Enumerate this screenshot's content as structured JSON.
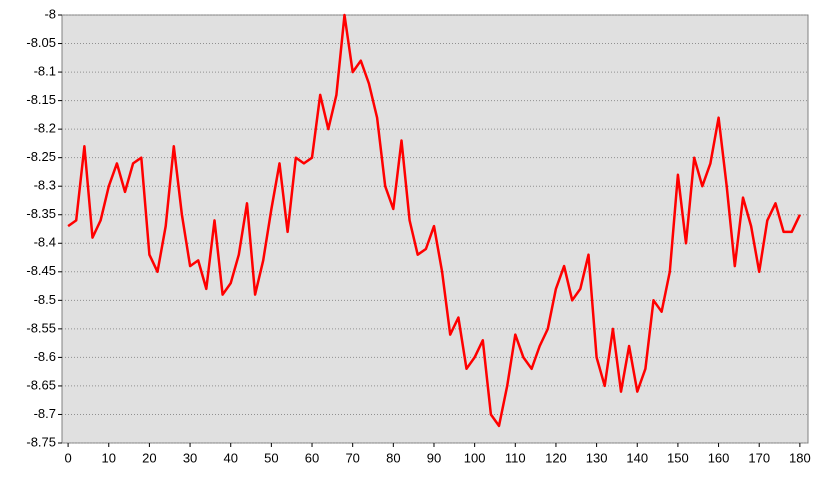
{
  "chart_data": {
    "type": "line",
    "x": [
      0,
      2,
      4,
      6,
      8,
      10,
      12,
      14,
      16,
      18,
      20,
      22,
      24,
      26,
      28,
      30,
      32,
      34,
      36,
      38,
      40,
      42,
      44,
      46,
      48,
      50,
      52,
      54,
      56,
      58,
      60,
      62,
      64,
      66,
      68,
      70,
      72,
      74,
      76,
      78,
      80,
      82,
      84,
      86,
      88,
      90,
      92,
      94,
      96,
      98,
      100,
      102,
      104,
      106,
      108,
      110,
      112,
      114,
      116,
      118,
      120,
      122,
      124,
      126,
      128,
      130,
      132,
      134,
      136,
      138,
      140,
      142,
      144,
      146,
      148,
      150,
      152,
      154,
      156,
      158,
      160,
      162,
      164,
      166,
      168,
      170,
      172,
      174,
      176,
      178,
      180
    ],
    "series": [
      {
        "color": "#ff0000",
        "values": [
          -8.37,
          -8.36,
          -8.23,
          -8.39,
          -8.36,
          -8.3,
          -8.26,
          -8.31,
          -8.26,
          -8.25,
          -8.42,
          -8.45,
          -8.37,
          -8.23,
          -8.35,
          -8.44,
          -8.43,
          -8.48,
          -8.36,
          -8.49,
          -8.47,
          -8.42,
          -8.33,
          -8.49,
          -8.43,
          -8.34,
          -8.26,
          -8.38,
          -8.25,
          -8.26,
          -8.25,
          -8.14,
          -8.2,
          -8.14,
          -8.0,
          -8.1,
          -8.08,
          -8.12,
          -8.18,
          -8.3,
          -8.34,
          -8.22,
          -8.36,
          -8.42,
          -8.41,
          -8.37,
          -8.45,
          -8.56,
          -8.53,
          -8.62,
          -8.6,
          -8.57,
          -8.7,
          -8.72,
          -8.65,
          -8.56,
          -8.6,
          -8.62,
          -8.58,
          -8.55,
          -8.48,
          -8.44,
          -8.5,
          -8.48,
          -8.42,
          -8.6,
          -8.65,
          -8.55,
          -8.66,
          -8.58,
          -8.66,
          -8.62,
          -8.5,
          -8.52,
          -8.45,
          -8.28,
          -8.4,
          -8.25,
          -8.3,
          -8.26,
          -8.18,
          -8.3,
          -8.44,
          -8.32,
          -8.37,
          -8.45,
          -8.36,
          -8.33,
          -8.38,
          -8.38,
          -8.35
        ]
      }
    ],
    "xlim": [
      -1.5,
      182
    ],
    "xticks": [
      0,
      10,
      20,
      30,
      40,
      50,
      60,
      70,
      80,
      90,
      100,
      110,
      120,
      130,
      140,
      150,
      160,
      170,
      180
    ],
    "ylim": [
      -8.75,
      -8
    ],
    "yticks": [
      -8.75,
      -8.7,
      -8.65,
      -8.6,
      -8.55,
      -8.5,
      -8.45,
      -8.4,
      -8.35,
      -8.3,
      -8.25,
      -8.2,
      -8.15,
      -8.1,
      -8.05,
      -8
    ],
    "grid": true
  }
}
